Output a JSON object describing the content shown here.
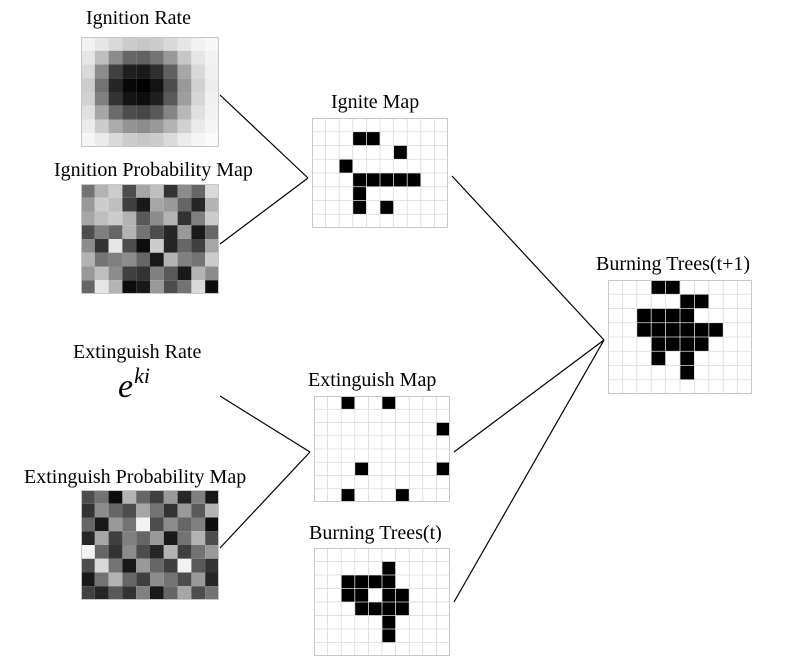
{
  "labels": {
    "ignition_rate": "Ignition Rate",
    "ignition_probability_map": "Ignition Probability Map",
    "ignite_map": "Ignite Map",
    "extinguish_rate": "Extinguish Rate",
    "extinguish_map": "Extinguish Map",
    "extinguish_probability_map": "Extinguish Probability Map",
    "burning_trees_t": "Burning Trees(t)",
    "burning_trees_t1": "Burning Trees(t+1)"
  },
  "formula": {
    "base": "e",
    "exponent": "ki"
  },
  "colors": {
    "grid_line": "#d9d9d9",
    "border": "#c8c8c8",
    "cell_on": "#000000",
    "cell_off": "#ffffff",
    "connector": "#000000"
  },
  "grids": {
    "ignition_rate": {
      "kind": "grayscale",
      "rows": [
        [
          0.05,
          0.1,
          0.15,
          0.2,
          0.22,
          0.2,
          0.15,
          0.1,
          0.05,
          0.03
        ],
        [
          0.1,
          0.25,
          0.45,
          0.6,
          0.62,
          0.55,
          0.4,
          0.22,
          0.1,
          0.05
        ],
        [
          0.15,
          0.45,
          0.75,
          0.88,
          0.9,
          0.82,
          0.62,
          0.35,
          0.15,
          0.06
        ],
        [
          0.2,
          0.55,
          0.85,
          0.97,
          1.0,
          0.92,
          0.7,
          0.4,
          0.18,
          0.07
        ],
        [
          0.18,
          0.5,
          0.8,
          0.92,
          0.95,
          0.88,
          0.65,
          0.38,
          0.16,
          0.06
        ],
        [
          0.12,
          0.35,
          0.58,
          0.7,
          0.72,
          0.65,
          0.48,
          0.28,
          0.12,
          0.05
        ],
        [
          0.08,
          0.2,
          0.33,
          0.42,
          0.45,
          0.4,
          0.3,
          0.18,
          0.08,
          0.04
        ],
        [
          0.04,
          0.08,
          0.15,
          0.2,
          0.22,
          0.2,
          0.14,
          0.08,
          0.04,
          0.02
        ]
      ]
    },
    "ignition_probability_map": {
      "kind": "grayscale",
      "rows": [
        [
          0.55,
          0.3,
          0.2,
          0.7,
          0.35,
          0.25,
          0.8,
          0.45,
          0.6,
          0.15
        ],
        [
          0.4,
          0.2,
          0.25,
          0.75,
          0.9,
          0.35,
          0.4,
          0.6,
          0.85,
          0.3
        ],
        [
          0.35,
          0.25,
          0.2,
          0.3,
          0.65,
          0.45,
          0.3,
          0.8,
          0.5,
          0.2
        ],
        [
          0.7,
          0.5,
          0.6,
          0.3,
          0.55,
          0.7,
          0.85,
          0.4,
          0.9,
          0.6
        ],
        [
          0.45,
          0.8,
          0.1,
          0.7,
          0.95,
          0.2,
          0.85,
          0.6,
          0.75,
          0.35
        ],
        [
          0.3,
          0.55,
          0.5,
          0.45,
          0.6,
          0.9,
          0.3,
          0.5,
          0.55,
          0.2
        ],
        [
          0.4,
          0.25,
          0.45,
          0.75,
          0.8,
          0.5,
          0.65,
          0.9,
          0.3,
          0.45
        ],
        [
          0.6,
          0.1,
          0.3,
          0.95,
          0.9,
          0.4,
          0.7,
          0.55,
          0.15,
          0.95
        ]
      ]
    },
    "ignite_map": {
      "kind": "binary",
      "rows": [
        [
          0,
          0,
          0,
          0,
          0,
          0,
          0,
          0,
          0,
          0
        ],
        [
          0,
          0,
          0,
          1,
          1,
          0,
          0,
          0,
          0,
          0
        ],
        [
          0,
          0,
          0,
          0,
          0,
          0,
          1,
          0,
          0,
          0
        ],
        [
          0,
          0,
          1,
          0,
          0,
          0,
          0,
          0,
          0,
          0
        ],
        [
          0,
          0,
          0,
          1,
          1,
          1,
          1,
          1,
          0,
          0
        ],
        [
          0,
          0,
          0,
          1,
          0,
          0,
          0,
          0,
          0,
          0
        ],
        [
          0,
          0,
          0,
          1,
          0,
          1,
          0,
          0,
          0,
          0
        ],
        [
          0,
          0,
          0,
          0,
          0,
          0,
          0,
          0,
          0,
          0
        ]
      ]
    },
    "extinguish_map": {
      "kind": "binary",
      "rows": [
        [
          0,
          0,
          1,
          0,
          0,
          1,
          0,
          0,
          0,
          0
        ],
        [
          0,
          0,
          0,
          0,
          0,
          0,
          0,
          0,
          0,
          0
        ],
        [
          0,
          0,
          0,
          0,
          0,
          0,
          0,
          0,
          0,
          1
        ],
        [
          0,
          0,
          0,
          0,
          0,
          0,
          0,
          0,
          0,
          0
        ],
        [
          0,
          0,
          0,
          0,
          0,
          0,
          0,
          0,
          0,
          0
        ],
        [
          0,
          0,
          0,
          1,
          0,
          0,
          0,
          0,
          0,
          1
        ],
        [
          0,
          0,
          0,
          0,
          0,
          0,
          0,
          0,
          0,
          0
        ],
        [
          0,
          0,
          1,
          0,
          0,
          0,
          1,
          0,
          0,
          0
        ]
      ]
    },
    "extinguish_probability_map": {
      "kind": "grayscale",
      "rows": [
        [
          0.7,
          0.55,
          0.95,
          0.3,
          0.6,
          0.75,
          0.4,
          0.85,
          0.5,
          0.9
        ],
        [
          0.8,
          0.45,
          0.6,
          0.7,
          0.35,
          0.55,
          0.8,
          0.4,
          0.65,
          0.3
        ],
        [
          0.6,
          0.9,
          0.4,
          0.55,
          0.05,
          0.7,
          0.45,
          0.6,
          0.5,
          0.95
        ],
        [
          0.85,
          0.35,
          0.75,
          0.5,
          0.6,
          0.4,
          0.9,
          0.55,
          0.3,
          0.7
        ],
        [
          0.05,
          0.6,
          0.8,
          0.45,
          0.7,
          0.85,
          0.3,
          0.75,
          0.55,
          0.4
        ],
        [
          0.7,
          0.15,
          0.55,
          0.9,
          0.4,
          0.6,
          0.75,
          0.05,
          0.65,
          0.8
        ],
        [
          0.9,
          0.55,
          0.3,
          0.6,
          0.75,
          0.45,
          0.55,
          0.7,
          0.4,
          0.85
        ],
        [
          0.75,
          0.85,
          0.65,
          0.8,
          0.5,
          0.9,
          0.6,
          0.35,
          0.7,
          0.55
        ]
      ]
    },
    "burning_trees_t": {
      "kind": "binary",
      "rows": [
        [
          0,
          0,
          0,
          0,
          0,
          0,
          0,
          0,
          0,
          0
        ],
        [
          0,
          0,
          0,
          0,
          0,
          1,
          0,
          0,
          0,
          0
        ],
        [
          0,
          0,
          1,
          1,
          1,
          1,
          0,
          0,
          0,
          0
        ],
        [
          0,
          0,
          1,
          1,
          0,
          1,
          1,
          0,
          0,
          0
        ],
        [
          0,
          0,
          0,
          1,
          1,
          1,
          1,
          0,
          0,
          0
        ],
        [
          0,
          0,
          0,
          0,
          0,
          1,
          0,
          0,
          0,
          0
        ],
        [
          0,
          0,
          0,
          0,
          0,
          1,
          0,
          0,
          0,
          0
        ],
        [
          0,
          0,
          0,
          0,
          0,
          0,
          0,
          0,
          0,
          0
        ]
      ]
    },
    "burning_trees_t1": {
      "kind": "binary",
      "rows": [
        [
          0,
          0,
          0,
          1,
          1,
          0,
          0,
          0,
          0,
          0
        ],
        [
          0,
          0,
          0,
          0,
          0,
          1,
          1,
          0,
          0,
          0
        ],
        [
          0,
          0,
          1,
          1,
          1,
          1,
          0,
          0,
          0,
          0
        ],
        [
          0,
          0,
          1,
          1,
          1,
          1,
          1,
          1,
          0,
          0
        ],
        [
          0,
          0,
          0,
          1,
          1,
          1,
          1,
          0,
          0,
          0
        ],
        [
          0,
          0,
          0,
          1,
          0,
          1,
          0,
          0,
          0,
          0
        ],
        [
          0,
          0,
          0,
          0,
          0,
          1,
          0,
          0,
          0,
          0
        ],
        [
          0,
          0,
          0,
          0,
          0,
          0,
          0,
          0,
          0,
          0
        ]
      ]
    }
  }
}
